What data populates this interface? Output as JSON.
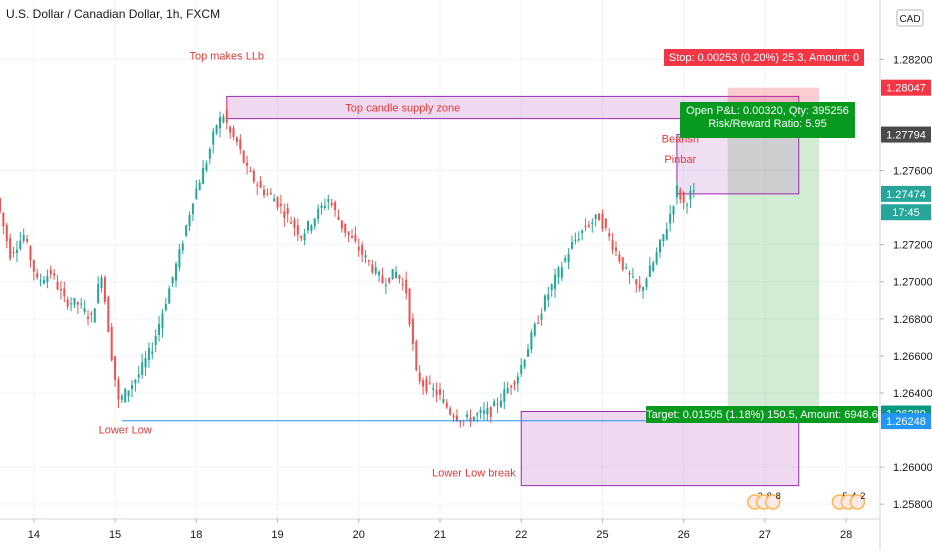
{
  "chart_data": {
    "type": "candlestick",
    "title": "U.S. Dollar / Canadian Dollar, 1h, FXCM",
    "currency_badge": "CAD",
    "y_ticks": [
      "1.28200",
      "1.27600",
      "1.27200",
      "1.27000",
      "1.26800",
      "1.26600",
      "1.26400",
      "1.26000",
      "1.25800"
    ],
    "y_tick_values": [
      1.282,
      1.276,
      1.272,
      1.27,
      1.268,
      1.266,
      1.264,
      1.26,
      1.258
    ],
    "y_range": [
      1.2572,
      1.2852
    ],
    "x_ticks": [
      "14",
      "15",
      "18",
      "19",
      "20",
      "21",
      "22",
      "25",
      "26",
      "27",
      "28"
    ],
    "x_tick_index": [
      0,
      24,
      48,
      72,
      96,
      120,
      144,
      168,
      192,
      216,
      240
    ],
    "x_range_index": [
      -10,
      250
    ],
    "grid": true,
    "price_labels": [
      {
        "text": "1.28047",
        "value": 1.28047,
        "color": "#f23645"
      },
      {
        "text": "1.27794",
        "value": 1.27794,
        "color": "#4a4a4a"
      },
      {
        "text": "1.27474",
        "value": 1.27474,
        "color": "#26a69a"
      },
      {
        "text": "17:45",
        "value": 1.27375,
        "color": "#26a69a"
      },
      {
        "text": "1.26289",
        "value": 1.26289,
        "color": "#089981"
      },
      {
        "text": "1.26248",
        "value": 1.26248,
        "color": "#2196f3"
      }
    ],
    "price_path": [
      [
        -10,
        1.2745
      ],
      [
        -6,
        1.2715
      ],
      [
        -2,
        1.2725
      ],
      [
        2,
        1.27
      ],
      [
        6,
        1.2705
      ],
      [
        10,
        1.269
      ],
      [
        14,
        1.2688
      ],
      [
        18,
        1.268
      ],
      [
        21,
        1.2705
      ],
      [
        24,
        1.266
      ],
      [
        26,
        1.2635
      ],
      [
        28,
        1.264
      ],
      [
        32,
        1.265
      ],
      [
        36,
        1.2665
      ],
      [
        40,
        1.269
      ],
      [
        44,
        1.2715
      ],
      [
        48,
        1.2745
      ],
      [
        52,
        1.2765
      ],
      [
        55,
        1.2785
      ],
      [
        57,
        1.279
      ],
      [
        59,
        1.278
      ],
      [
        61,
        1.2775
      ],
      [
        64,
        1.276
      ],
      [
        68,
        1.275
      ],
      [
        72,
        1.2745
      ],
      [
        76,
        1.2735
      ],
      [
        80,
        1.2725
      ],
      [
        84,
        1.2735
      ],
      [
        88,
        1.2745
      ],
      [
        92,
        1.273
      ],
      [
        96,
        1.272
      ],
      [
        100,
        1.271
      ],
      [
        104,
        1.27
      ],
      [
        108,
        1.2705
      ],
      [
        111,
        1.2695
      ],
      [
        114,
        1.265
      ],
      [
        116,
        1.2645
      ],
      [
        120,
        1.264
      ],
      [
        124,
        1.263
      ],
      [
        128,
        1.2625
      ],
      [
        132,
        1.2628
      ],
      [
        136,
        1.263
      ],
      [
        140,
        1.264
      ],
      [
        144,
        1.265
      ],
      [
        148,
        1.267
      ],
      [
        152,
        1.269
      ],
      [
        156,
        1.2705
      ],
      [
        160,
        1.272
      ],
      [
        164,
        1.273
      ],
      [
        168,
        1.2735
      ],
      [
        172,
        1.272
      ],
      [
        176,
        1.2705
      ],
      [
        180,
        1.2695
      ],
      [
        184,
        1.271
      ],
      [
        188,
        1.273
      ],
      [
        191,
        1.275
      ],
      [
        193,
        1.2742
      ],
      [
        195,
        1.2747
      ]
    ],
    "swing_labels": [
      {
        "text": "Top makes LLb",
        "index": 57,
        "value": 1.282
      },
      {
        "text": "Lower Low",
        "index": 27,
        "value": 1.2618
      },
      {
        "text": "Lower Low break",
        "index": 130,
        "value": 1.2595
      },
      {
        "text": "Bearish",
        "index": 191,
        "value": 1.2775
      },
      {
        "text": "Pinbar",
        "index": 191,
        "value": 1.2764
      }
    ],
    "lower_low_line": {
      "from_index": 26,
      "to_index": 196,
      "value": 1.2625
    },
    "supply_zone": {
      "label": "Top candle supply zone",
      "from_index": 57,
      "to_index": 226,
      "top": 1.28,
      "bottom": 1.2788
    },
    "pinbar_zone": {
      "from_index": 190,
      "to_index": 226,
      "top": 1.27794,
      "bottom": 1.27474
    },
    "demand_zone": {
      "from_index": 144,
      "to_index": 226,
      "top": 1.263,
      "bottom": 1.259
    },
    "position": {
      "from_index": 205,
      "to_index": 232,
      "entry": 1.27794,
      "stop": 1.28047,
      "target": 1.26289,
      "stop_label": "Stop: 0.00253 (0.20%) 25.3, Amount: 0",
      "pnl_label": "Open P&L: 0.00320, Qty: 395256",
      "rr_label": "Risk/Reward Ratio: 5.95",
      "target_label": "Target: 0.01505 (1.18%) 150.5, Amount: 6948.6"
    },
    "events": [
      {
        "index": 213,
        "labels": [
          "2",
          "8",
          "8"
        ]
      },
      {
        "index": 238,
        "labels": [
          "5",
          "4",
          "2"
        ]
      }
    ]
  }
}
